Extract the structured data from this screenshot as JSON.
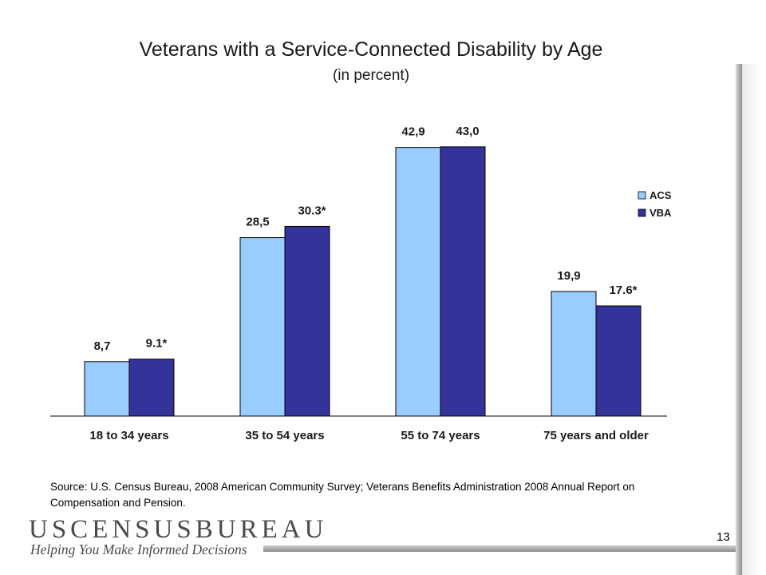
{
  "page_number": "13",
  "source_note": "Source: U.S. Census Bureau, 2008 American Community Survey; Veterans Benefits Administration 2008 Annual Report on Compensation and Pension.",
  "logo": {
    "wordmark": "USCENSUSBUREAU",
    "tagline": "Helping You Make Informed Decisions"
  },
  "colors": {
    "acs": "#99ccff",
    "vba": "#333399",
    "axis": "#000000"
  },
  "chart_data": {
    "type": "bar",
    "title": "Veterans with a Service-Connected Disability by Age",
    "subtitle": "(in percent)",
    "xlabel": "",
    "ylabel": "",
    "ylim": [
      0,
      50
    ],
    "grid": false,
    "legend": "right",
    "categories": [
      "18 to 34 years",
      "35 to 54 years",
      "55 to 74 years",
      "75 years and older"
    ],
    "series": [
      {
        "name": "ACS",
        "values": [
          8.7,
          28.5,
          42.9,
          19.9
        ],
        "labels": [
          "8,7",
          "28,5",
          "42,9",
          "19,9"
        ]
      },
      {
        "name": "VBA",
        "values": [
          9.1,
          30.3,
          43.0,
          17.6
        ],
        "labels": [
          "9.1*",
          "30.3*",
          "43,0",
          "17.6*"
        ]
      }
    ]
  }
}
